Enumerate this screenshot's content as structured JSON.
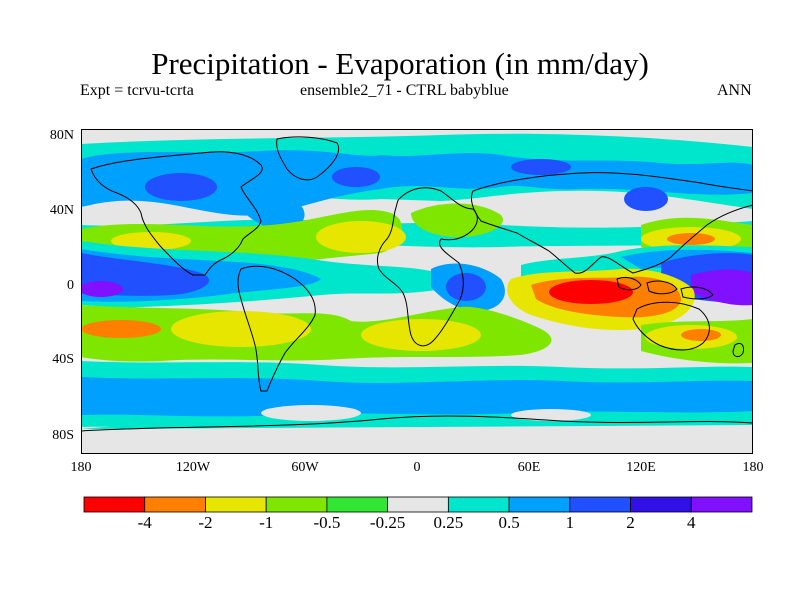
{
  "title": "Precipitation - Evaporation (in mm/day)",
  "subtitle_left": "Expt = tcrvu-tcrta",
  "subtitle_center": "ensemble2_71 - CTRL babyblue",
  "subtitle_right": "ANN",
  "map": {
    "variable": "P-E difference",
    "units": "mm/day",
    "lon_range": [
      -180,
      180
    ],
    "lat_range": [
      -90,
      90
    ],
    "lat_ticks": [
      "80N",
      "40N",
      "0",
      "40S",
      "80S"
    ],
    "lon_ticks": [
      "180",
      "120W",
      "60W",
      "0",
      "60E",
      "120E",
      "180"
    ]
  },
  "colorbar": {
    "boundaries": [
      "-4",
      "-2",
      "-1",
      "-0.5",
      "-0.25",
      "0.25",
      "0.5",
      "1",
      "2",
      "4"
    ],
    "colors": [
      "#ff0000",
      "#ff7f00",
      "#e6e600",
      "#7fe600",
      "#33e633",
      "#e6e6e6",
      "#00e6cc",
      "#00a0ff",
      "#2050ff",
      "#3010e6",
      "#8010ff"
    ]
  },
  "colors": {
    "land_outline": "#000000",
    "neutral": "#e6e6e6"
  }
}
